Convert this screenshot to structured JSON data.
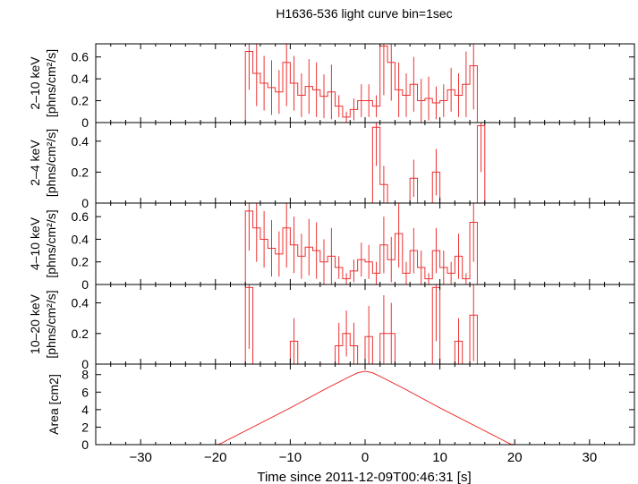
{
  "title": "H1636-536 light curve bin=1sec",
  "xlabel": "Time since 2011-12-09T00:46:31 [s]",
  "colors": {
    "data": "#ee3030",
    "axes": "#000000"
  },
  "chart_data": [
    {
      "type": "line",
      "title": "H1636-536 light curve bin=1sec",
      "ylabel": [
        "2–10 keV",
        "[phns/cm²/s]"
      ],
      "xlim": [
        -36,
        36
      ],
      "ylim": [
        0,
        0.72
      ],
      "yticks": [
        0,
        0.2,
        0.4,
        0.6
      ],
      "show_xtick_labels": false,
      "bins": {
        "start": -16,
        "width": 1,
        "values": [
          0.65,
          0.45,
          0.36,
          0.32,
          0.28,
          0.55,
          0.36,
          0.25,
          0.33,
          0.3,
          0.24,
          0.28,
          0.15,
          0.05,
          0.12,
          0.2,
          0.2,
          0.15,
          0.7,
          0.55,
          0.3,
          0.25,
          0.35,
          0.2,
          0.22,
          0.18,
          0.2,
          0.3,
          0.25,
          0.35,
          0.52
        ],
        "errors": [
          0.35,
          0.3,
          0.25,
          0.25,
          0.2,
          0.4,
          0.25,
          0.2,
          0.25,
          0.25,
          0.2,
          0.25,
          0.1,
          0.05,
          0.1,
          0.15,
          0.15,
          0.1,
          0.45,
          0.35,
          0.25,
          0.2,
          0.25,
          0.2,
          0.2,
          0.15,
          0.15,
          0.2,
          0.2,
          0.3,
          0.4
        ]
      },
      "baseline": 0
    },
    {
      "type": "line",
      "ylabel": [
        "2–4 keV",
        "[phns/cm²/s]"
      ],
      "xlim": [
        -36,
        36
      ],
      "ylim": [
        0,
        0.52
      ],
      "yticks": [
        0,
        0.2,
        0.4
      ],
      "show_xtick_labels": false,
      "bins": {
        "start": 1,
        "width": 1,
        "values": [
          0.49,
          0.12,
          0,
          0,
          0,
          0.16,
          0,
          0,
          0.2,
          0,
          0,
          0,
          0,
          0,
          0.5
        ],
        "errors": [
          0.25,
          0.12,
          0,
          0,
          0,
          0.12,
          0,
          0,
          0.15,
          0,
          0,
          0,
          0,
          0,
          0.3
        ]
      },
      "baseline": 0
    },
    {
      "type": "line",
      "ylabel": [
        "4–10 keV",
        "[phns/cm²/s]"
      ],
      "xlim": [
        -36,
        36
      ],
      "ylim": [
        0,
        0.72
      ],
      "yticks": [
        0,
        0.2,
        0.4,
        0.6
      ],
      "show_xtick_labels": false,
      "bins": {
        "start": -16,
        "width": 1,
        "values": [
          0.65,
          0.5,
          0.4,
          0.32,
          0.27,
          0.5,
          0.35,
          0.25,
          0.33,
          0.3,
          0.2,
          0.25,
          0.15,
          0.05,
          0.12,
          0.22,
          0.2,
          0.1,
          0.35,
          0.22,
          0.45,
          0.1,
          0.3,
          0.15,
          0.05,
          0.3,
          0.15,
          0.1,
          0.25,
          0.05,
          0.55
        ],
        "errors": [
          0.35,
          0.3,
          0.25,
          0.25,
          0.2,
          0.35,
          0.25,
          0.2,
          0.25,
          0.25,
          0.2,
          0.25,
          0.1,
          0.05,
          0.1,
          0.15,
          0.15,
          0.1,
          0.25,
          0.2,
          0.3,
          0.1,
          0.2,
          0.15,
          0.05,
          0.2,
          0.15,
          0.1,
          0.2,
          0.05,
          0.35
        ]
      },
      "baseline": 0
    },
    {
      "type": "line",
      "ylabel": [
        "10–20 keV",
        "[phns/cm²/s]"
      ],
      "xlim": [
        -36,
        36
      ],
      "ylim": [
        0,
        0.52
      ],
      "yticks": [
        0,
        0.2,
        0.4
      ],
      "show_xtick_labels": false,
      "bins": {
        "start": -16,
        "width": 1,
        "values": [
          0.5,
          0,
          0,
          0,
          0,
          0,
          0.15,
          0,
          0,
          0,
          0,
          0,
          0.12,
          0.2,
          0.12,
          0,
          0.18,
          0,
          0.2,
          0.2,
          0,
          0,
          0,
          0,
          0,
          0.5,
          0,
          0,
          0.15,
          0,
          0.32
        ],
        "errors": [
          0.4,
          0,
          0,
          0,
          0,
          0,
          0.15,
          0,
          0,
          0,
          0,
          0,
          0.15,
          0.15,
          0.15,
          0,
          0.2,
          0,
          0.25,
          0.2,
          0,
          0,
          0,
          0,
          0,
          0.35,
          0,
          0,
          0.15,
          0,
          0.3
        ]
      },
      "baseline": 0
    },
    {
      "type": "line",
      "ylabel": [
        "Area [cm2]"
      ],
      "xlim": [
        -36,
        36
      ],
      "ylim": [
        0,
        9.2
      ],
      "yticks": [
        0,
        2,
        4,
        6,
        8
      ],
      "xticks": [
        -30,
        -20,
        -10,
        0,
        10,
        20,
        30
      ],
      "show_xtick_labels": true,
      "curve": {
        "x": [
          -36,
          -20,
          -19.5,
          -19,
          -18,
          -10,
          -5,
          -2,
          -1,
          0,
          1,
          2,
          5,
          10,
          18,
          19,
          19.5,
          20,
          36
        ],
        "y": [
          0,
          0,
          0.05,
          0.25,
          0.7,
          4.2,
          6.5,
          7.8,
          8.2,
          8.4,
          8.2,
          7.8,
          6.5,
          4.2,
          0.7,
          0.25,
          0.05,
          0,
          0
        ]
      }
    }
  ]
}
